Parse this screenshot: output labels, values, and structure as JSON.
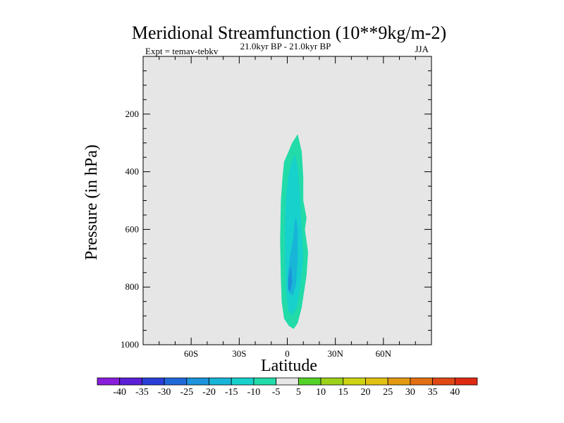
{
  "chart_data": {
    "type": "contour-map",
    "title": "Meridional Streamfunction (10**9kg/m-2)",
    "subtitle_left": "Expt = temav-tebkv",
    "subtitle_center": "21.0kyr BP - 21.0kyr BP",
    "subtitle_right": "JJA",
    "xlabel": "Latitude",
    "ylabel": "Pressure (in hPa)",
    "xlim": [
      -90,
      90
    ],
    "ylim": [
      1000,
      0
    ],
    "x_ticks": [
      {
        "value": -60,
        "label": "60S"
      },
      {
        "value": -30,
        "label": "30S"
      },
      {
        "value": 0,
        "label": "0"
      },
      {
        "value": 30,
        "label": "30N"
      },
      {
        "value": 60,
        "label": "60N"
      }
    ],
    "y_ticks": [
      {
        "value": 200,
        "label": "200"
      },
      {
        "value": 400,
        "label": "400"
      },
      {
        "value": 600,
        "label": "600"
      },
      {
        "value": 800,
        "label": "800"
      },
      {
        "value": 1000,
        "label": "1000"
      }
    ],
    "background_color": "#e6e6e6",
    "contour_levels": [
      -40,
      -35,
      -30,
      -25,
      -20,
      -15,
      -10,
      -5,
      5,
      10,
      15,
      20,
      25,
      30,
      35,
      40
    ],
    "colorbar_labels": [
      "-40",
      "-35",
      "-30",
      "-25",
      "-20",
      "-15",
      "-10",
      "-5",
      "5",
      "10",
      "15",
      "20",
      "25",
      "30",
      "35",
      "40"
    ],
    "colorbar_colors": [
      "#8a1ddb",
      "#5a1fd6",
      "#2a3fd8",
      "#1f6ad8",
      "#1c93da",
      "#18b5d8",
      "#17d1cc",
      "#22dba8",
      "#e6e6e6",
      "#55d228",
      "#9ed11a",
      "#cdd414",
      "#e3c113",
      "#e39a12",
      "#e26f13",
      "#e04814",
      "#de2a12"
    ],
    "filled_regions": [
      {
        "range": "-10 to -5",
        "color": "#22dba8",
        "polygon": [
          [
            6.5,
            270
          ],
          [
            9,
            330
          ],
          [
            10,
            420
          ],
          [
            10,
            500
          ],
          [
            12,
            560
          ],
          [
            11,
            600
          ],
          [
            13,
            680
          ],
          [
            12,
            760
          ],
          [
            9,
            870
          ],
          [
            6.5,
            925
          ],
          [
            4,
            945
          ],
          [
            1,
            935
          ],
          [
            -2,
            910
          ],
          [
            -3.5,
            850
          ],
          [
            -4,
            770
          ],
          [
            -4.5,
            640
          ],
          [
            -4,
            500
          ],
          [
            -3,
            420
          ],
          [
            -2,
            365
          ],
          [
            0,
            340
          ],
          [
            3,
            300
          ]
        ]
      },
      {
        "range": "-15 to -10",
        "color": "#17d1cc",
        "polygon": [
          [
            5,
            340
          ],
          [
            7,
            400
          ],
          [
            8,
            500
          ],
          [
            9,
            600
          ],
          [
            10,
            700
          ],
          [
            8,
            800
          ],
          [
            6,
            870
          ],
          [
            3,
            900
          ],
          [
            0.5,
            880
          ],
          [
            -1,
            800
          ],
          [
            -1.5,
            700
          ],
          [
            -1.5,
            600
          ],
          [
            -1,
            500
          ],
          [
            0.5,
            420
          ],
          [
            2.5,
            370
          ]
        ]
      },
      {
        "range": "-20 to -15",
        "color": "#18b5d8",
        "polygon": [
          [
            5.5,
            555
          ],
          [
            6.5,
            600
          ],
          [
            6.5,
            700
          ],
          [
            5.5,
            790
          ],
          [
            3.5,
            830
          ],
          [
            1,
            820
          ],
          [
            0.5,
            750
          ],
          [
            1.5,
            700
          ],
          [
            3.5,
            640
          ],
          [
            4.5,
            580
          ]
        ]
      },
      {
        "range": "-25 to -20",
        "color": "#1c93da",
        "polygon": [
          [
            2.5,
            730
          ],
          [
            3,
            780
          ],
          [
            2,
            815
          ],
          [
            0.5,
            810
          ],
          [
            0.5,
            770
          ],
          [
            1.5,
            740
          ]
        ]
      }
    ]
  }
}
